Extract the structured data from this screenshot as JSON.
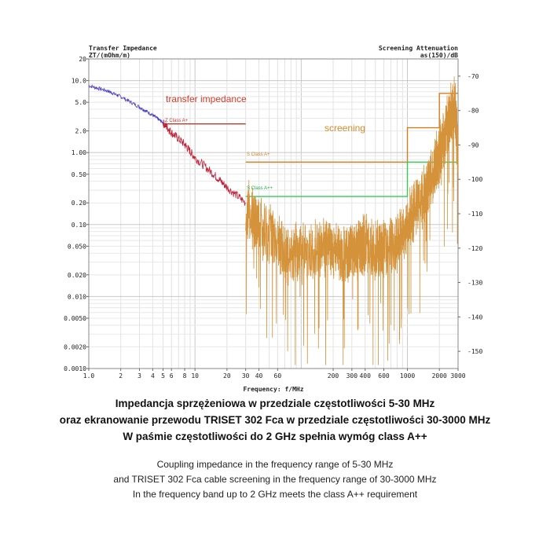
{
  "chart_data": {
    "type": "line",
    "x_scale": "log",
    "xlim": [
      1,
      3000
    ],
    "left_axis": {
      "title_line1": "Transfer Impedance",
      "title_line2": "ZT/(mOhm/m)",
      "scale": "log",
      "range": [
        0.001,
        20
      ],
      "ticks": [
        {
          "v": 20,
          "label": "20"
        },
        {
          "v": 10,
          "label": "10.0"
        },
        {
          "v": 5,
          "label": "5.0"
        },
        {
          "v": 2,
          "label": "2.0"
        },
        {
          "v": 1,
          "label": "1.00"
        },
        {
          "v": 0.5,
          "label": "0.50"
        },
        {
          "v": 0.2,
          "label": "0.20"
        },
        {
          "v": 0.1,
          "label": "0.10"
        },
        {
          "v": 0.05,
          "label": "0.050"
        },
        {
          "v": 0.02,
          "label": "0.020"
        },
        {
          "v": 0.01,
          "label": "0.010"
        },
        {
          "v": 0.005,
          "label": "0.0050"
        },
        {
          "v": 0.002,
          "label": "0.0020"
        },
        {
          "v": 0.001,
          "label": "0.0010"
        }
      ]
    },
    "right_axis": {
      "title_line1": "Screening Attenuation",
      "title_line2": "as(150)/dB",
      "range": [
        -155,
        -65
      ],
      "ticks": [
        {
          "v": -70,
          "label": "-70"
        },
        {
          "v": -80,
          "label": "-80"
        },
        {
          "v": -90,
          "label": "-90"
        },
        {
          "v": -100,
          "label": "-100"
        },
        {
          "v": -110,
          "label": "-110"
        },
        {
          "v": -120,
          "label": "-120"
        },
        {
          "v": -130,
          "label": "-130"
        },
        {
          "v": -140,
          "label": "-140"
        },
        {
          "v": -150,
          "label": "-150"
        }
      ]
    },
    "x_axis": {
      "title": "Frequency: f/MHz",
      "ticks": [
        {
          "v": 1,
          "label": "1.0"
        },
        {
          "v": 2,
          "label": "2"
        },
        {
          "v": 3,
          "label": "3"
        },
        {
          "v": 4,
          "label": "4"
        },
        {
          "v": 5,
          "label": "5"
        },
        {
          "v": 6,
          "label": "6"
        },
        {
          "v": 8,
          "label": "8"
        },
        {
          "v": 10,
          "label": "10"
        },
        {
          "v": 20,
          "label": "20"
        },
        {
          "v": 30,
          "label": "30"
        },
        {
          "v": 40,
          "label": "40"
        },
        {
          "v": 60,
          "label": "60"
        },
        {
          "v": 200,
          "label": "200"
        },
        {
          "v": 300,
          "label": "300"
        },
        {
          "v": 400,
          "label": "400"
        },
        {
          "v": 600,
          "label": "600"
        },
        {
          "v": 1000,
          "label": "1000"
        },
        {
          "v": 2000,
          "label": "2000"
        },
        {
          "v": 3000,
          "label": "3000"
        }
      ]
    },
    "annotations": {
      "transfer_impedance": "transfer impedance",
      "screening": "screening",
      "z_class": "Z Class A+",
      "s_class_a_plus": "S Class A+",
      "s_class_a_plus_plus": "S Class A++"
    },
    "limits": [
      {
        "name": "Z Class A+",
        "axis": "left",
        "points": [
          [
            5,
            2.5
          ],
          [
            30,
            2.5
          ]
        ],
        "color": "#c0392b"
      },
      {
        "name": "S Class A+",
        "axis": "right",
        "points": [
          [
            30,
            -95
          ],
          [
            1000,
            -95
          ],
          [
            1000,
            -85
          ],
          [
            2000,
            -85
          ],
          [
            2000,
            -75
          ],
          [
            3000,
            -75
          ]
        ],
        "color": "#d47e1f"
      },
      {
        "name": "S Class A++",
        "axis": "right",
        "points": [
          [
            30,
            -105
          ],
          [
            1000,
            -105
          ],
          [
            1000,
            -95
          ],
          [
            3000,
            -95
          ]
        ],
        "color": "#33cc55"
      }
    ],
    "series": [
      {
        "axis": "left",
        "color": "#4a3fc4",
        "x": [
          1,
          1.5,
          2,
          3,
          4,
          5
        ],
        "y": [
          8.5,
          7.2,
          6.0,
          4.3,
          3.3,
          2.6
        ]
      },
      {
        "axis": "left",
        "color": "#c0233a",
        "x": [
          5,
          6,
          8,
          10,
          15,
          20,
          30
        ],
        "y": [
          2.6,
          1.9,
          1.3,
          0.85,
          0.5,
          0.33,
          0.2
        ]
      },
      {
        "axis": "right",
        "color": "#d4923a",
        "x": [
          30,
          40,
          60,
          80,
          100,
          150,
          200,
          250,
          300,
          350,
          400,
          500,
          600,
          800,
          1000,
          1200,
          1500,
          1800,
          2000,
          2200,
          2500,
          2800,
          3000
        ],
        "y": [
          -108,
          -113,
          -118,
          -122,
          -121,
          -120,
          -121,
          -123,
          -121,
          -120,
          -119,
          -121,
          -120,
          -118,
          -113,
          -108,
          -103,
          -97,
          -93,
          -88,
          -82,
          -78,
          -95
        ]
      }
    ],
    "grid": true
  },
  "caption": {
    "pl_line1": "Impedancja sprzężeniowa w przedziale częstotliwości 5-30 MHz",
    "pl_line2": "oraz ekranowanie przewodu TRISET 302 Fca w przedziale częstotliwości 30-3000 MHz",
    "pl_line3": "W paśmie częstotliwości do 2 GHz spełnia wymóg class A++",
    "en_line1": "Coupling impedance in the frequency range of 5-30 MHz",
    "en_line2": "and TRISET 302 Fca cable screening in the frequency range of 30-3000 MHz",
    "en_line3": "In the frequency band up to 2 GHz meets the class A++ requirement"
  }
}
